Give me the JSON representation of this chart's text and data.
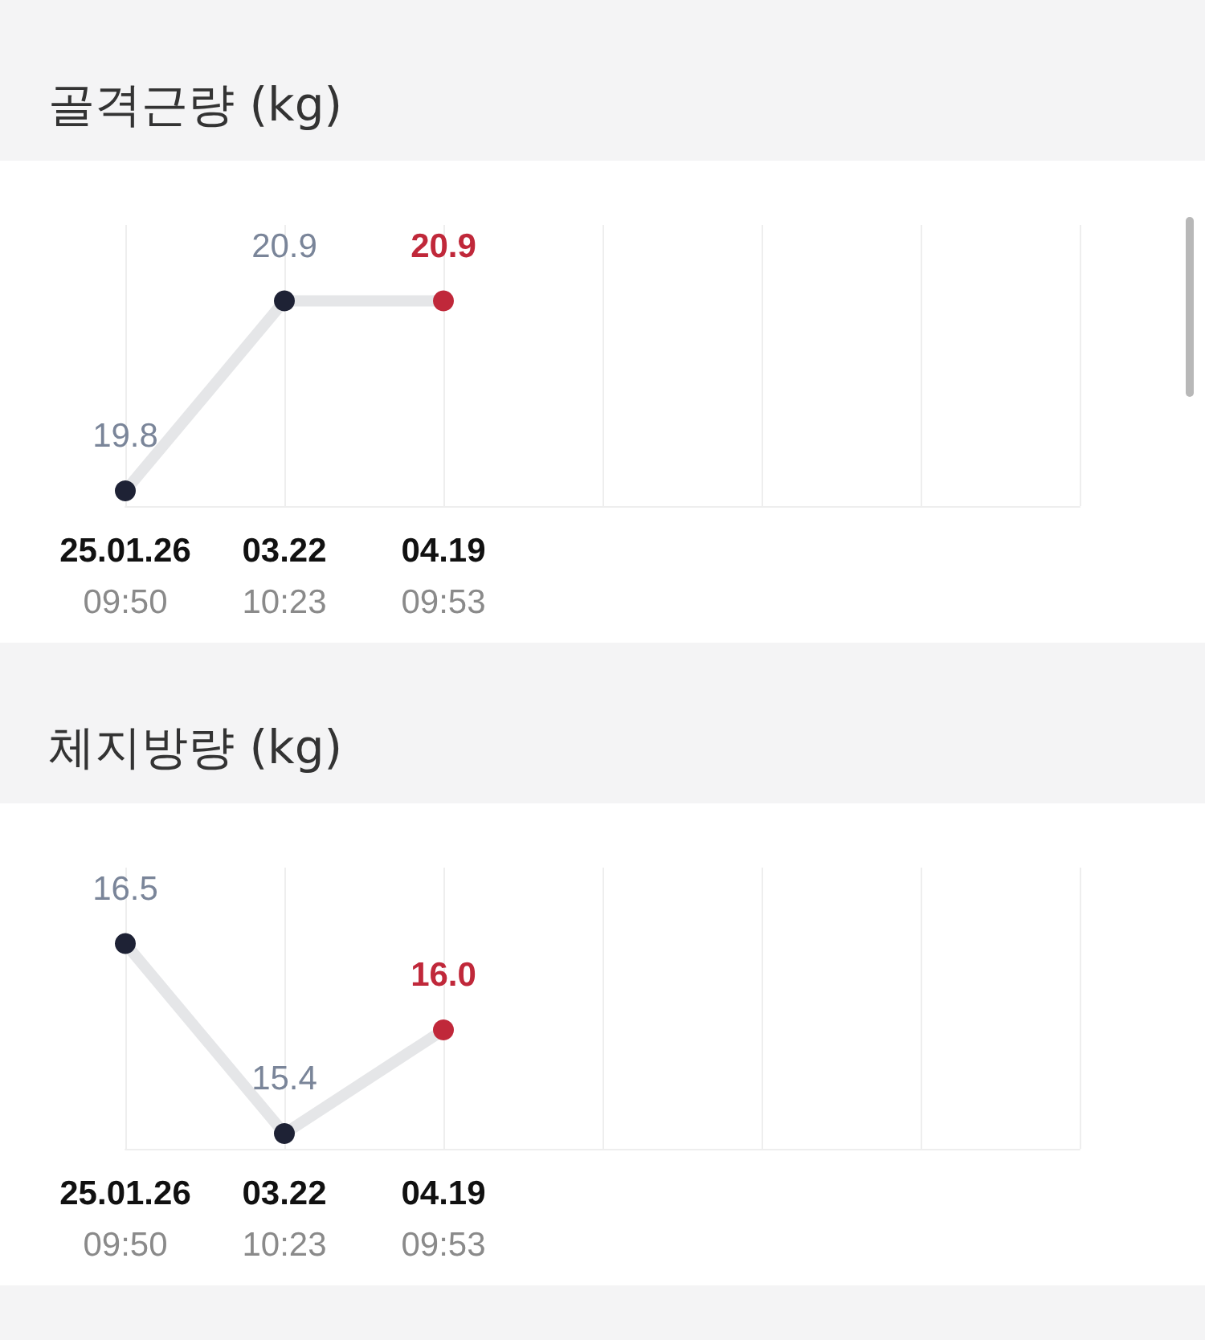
{
  "chart_data": [
    {
      "type": "line",
      "title": "골격근량 (kg)",
      "categories": [
        "25.01.26\n09:50",
        "03.22\n10:23",
        "04.19\n09:53",
        null,
        null,
        null,
        null
      ],
      "series": [
        {
          "color": "#1e2235",
          "colors": [
            "#1e2235",
            "#1e2235",
            "#c0283a",
            null,
            null,
            null,
            null
          ],
          "values": [
            19.8,
            20.9,
            20.9,
            null,
            null,
            null,
            null
          ],
          "value_labels": [
            "19.8",
            "20.9",
            "20.9",
            null,
            null,
            null,
            null
          ]
        }
      ],
      "grid": "x",
      "marker": "circle",
      "tick_labels": "x"
    },
    {
      "type": "line",
      "title": "체지방량 (kg)",
      "categories": [
        "25.01.26\n09:50",
        "03.22\n10:23",
        "04.19\n09:53",
        null,
        null,
        null,
        null
      ],
      "series": [
        {
          "color": "#1e2235",
          "colors": [
            "#1e2235",
            "#1e2235",
            "#c0283a",
            null,
            null,
            null,
            null
          ],
          "values": [
            16.5,
            15.4,
            16.0,
            null,
            null,
            null,
            null
          ],
          "value_labels": [
            "16.5",
            "15.4",
            "16.0",
            null,
            null,
            null,
            null
          ]
        }
      ],
      "grid": "x",
      "marker": "circle",
      "tick_labels": "x"
    }
  ]
}
